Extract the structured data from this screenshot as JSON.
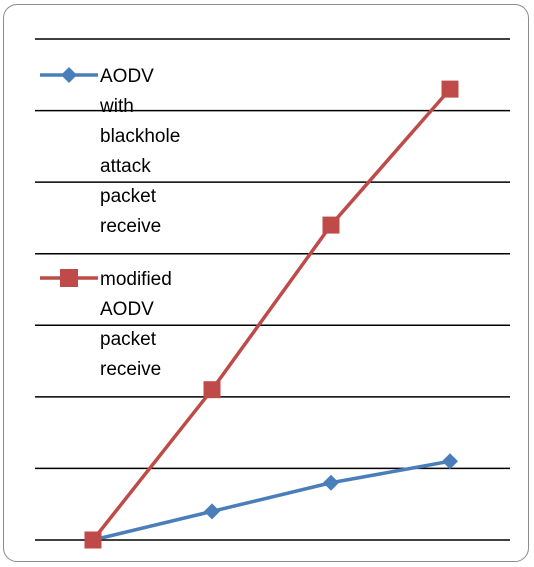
{
  "chart_data": {
    "type": "line",
    "title": "",
    "xlabel": "",
    "ylabel": "",
    "x": [
      1,
      2,
      3,
      4
    ],
    "ylim": [
      0,
      7
    ],
    "grid": true,
    "legend_position": "top-left",
    "series": [
      {
        "name": "AODV with blackhole attack packet receive",
        "name_lines": [
          "AODV",
          "with",
          "blackhole",
          "attack",
          "packet",
          "receive"
        ],
        "values": [
          0,
          0.4,
          0.8,
          1.1
        ],
        "color": "#4a7ebb",
        "marker": "diamond"
      },
      {
        "name": "modified AODV packet receive",
        "name_lines": [
          "modified",
          "AODV",
          "packet",
          "receive"
        ],
        "values": [
          0,
          2.1,
          4.4,
          6.3
        ],
        "color": "#be4b48",
        "marker": "square"
      }
    ]
  }
}
